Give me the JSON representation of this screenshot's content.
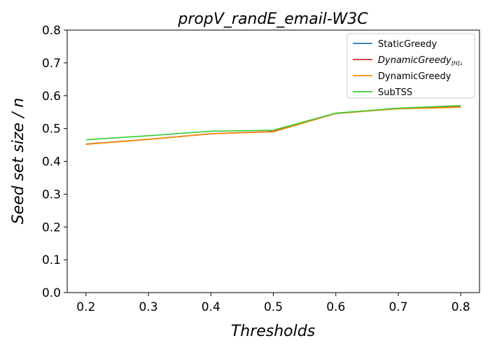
{
  "chart_data": {
    "type": "line",
    "title": "propV_randE_email-W3C",
    "xlabel": "Thresholds",
    "ylabel": "Seed set size / n",
    "x": [
      0.2,
      0.3,
      0.4,
      0.5,
      0.6,
      0.7,
      0.8
    ],
    "xlim": [
      0.17,
      0.83
    ],
    "ylim": [
      0.0,
      0.8
    ],
    "xticks": [
      "0.2",
      "0.3",
      "0.4",
      "0.5",
      "0.6",
      "0.7",
      "0.8"
    ],
    "yticks": [
      "0.0",
      "0.1",
      "0.2",
      "0.3",
      "0.4",
      "0.5",
      "0.6",
      "0.7",
      "0.8"
    ],
    "grid": false,
    "legend_position": "top-right",
    "series": [
      {
        "name": "StaticGreedy",
        "legend_main": "StaticGreedy",
        "legend_sub": "",
        "color": "#1f77b4",
        "values": [
          0.453,
          0.467,
          0.484,
          0.491,
          0.546,
          0.561,
          0.566
        ]
      },
      {
        "name": "DynamicGreedy[H]2",
        "legend_main": "DynamicGreedy",
        "legend_sub": "[H]₂",
        "color": "#d62728",
        "values": [
          0.452,
          0.467,
          0.484,
          0.491,
          0.546,
          0.561,
          0.566
        ]
      },
      {
        "name": "DynamicGreedy",
        "legend_main": "DynamicGreedy",
        "legend_sub": "",
        "color": "#ff8c00",
        "values": [
          0.452,
          0.467,
          0.484,
          0.49,
          0.546,
          0.56,
          0.565
        ]
      },
      {
        "name": "SubTSS",
        "legend_main": "SubTSS",
        "legend_sub": "",
        "color": "#33cc33",
        "values": [
          0.466,
          0.478,
          0.492,
          0.495,
          0.547,
          0.562,
          0.57
        ]
      }
    ]
  }
}
